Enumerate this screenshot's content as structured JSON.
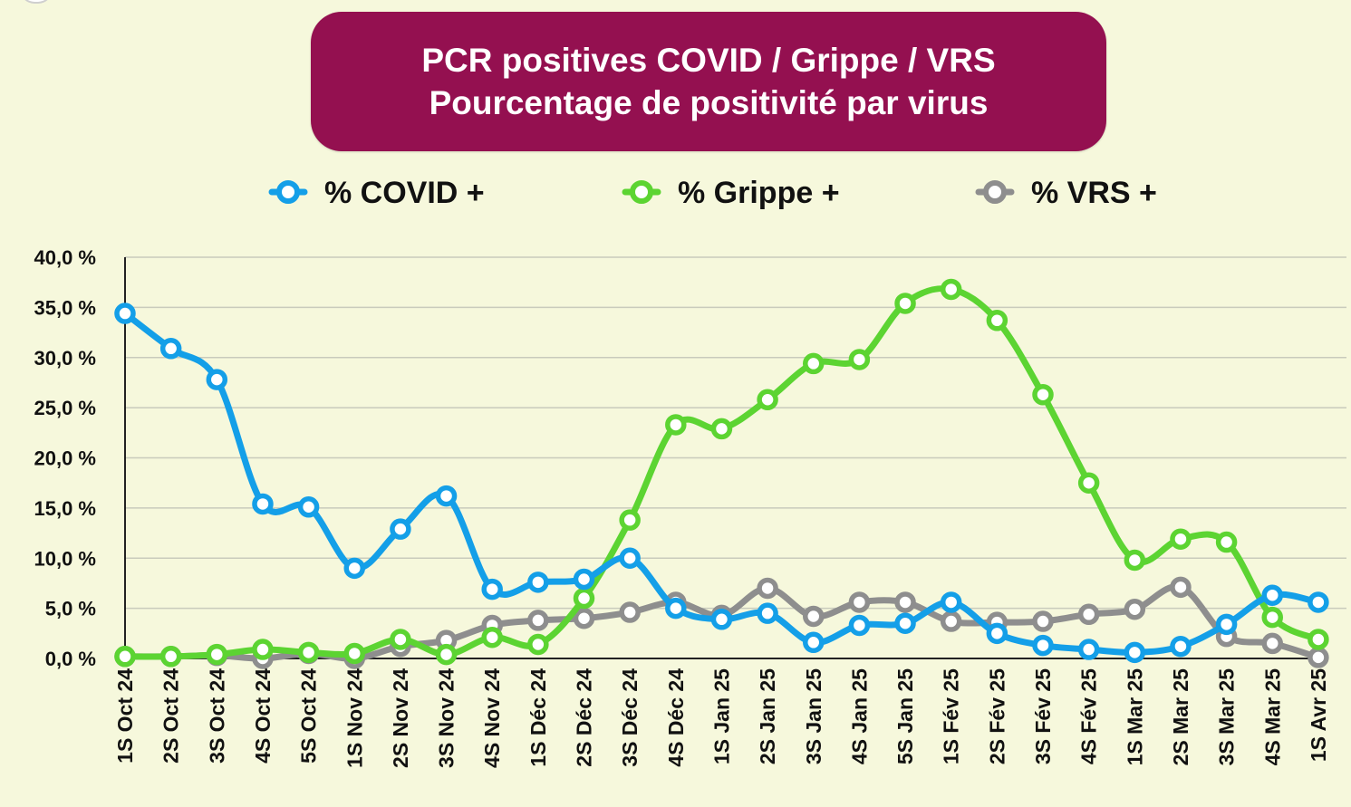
{
  "chart_data": {
    "type": "line",
    "title": "PCR positives COVID / Grippe / VRS",
    "subtitle": "Pourcentage de positivité par virus",
    "xlabel": "",
    "ylabel": "",
    "ylim": [
      0,
      40
    ],
    "y_ticks": [
      0,
      5,
      10,
      15,
      20,
      25,
      30,
      35,
      40
    ],
    "y_tick_labels": [
      "0,0 %",
      "5,0 %",
      "10,0 %",
      "15,0 %",
      "20,0 %",
      "25,0 %",
      "30,0 %",
      "35,0 %",
      "40,0 %"
    ],
    "grid": true,
    "legend_position": "top",
    "categories": [
      "1S Oct 24",
      "2S Oct 24",
      "3S Oct 24",
      "4S Oct 24",
      "5S Oct 24",
      "1S Nov 24",
      "2S Nov 24",
      "3S Nov 24",
      "4S Nov 24",
      "1S Déc 24",
      "2S Déc 24",
      "3S Déc 24",
      "4S Déc 24",
      "1S Jan 25",
      "2S Jan 25",
      "3S Jan 25",
      "4S Jan 25",
      "5S Jan 25",
      "1S Fév 25",
      "2S Fév 25",
      "3S Fév 25",
      "4S Fév 25",
      "1S Mar 25",
      "2S Mar 25",
      "3S Mar 25",
      "4S Mar 25",
      "1S Avr 25"
    ],
    "series": [
      {
        "name": "% VRS +",
        "color": "#8e8e8e",
        "values": [
          0.2,
          0.2,
          0.3,
          0.0,
          0.5,
          0.0,
          1.2,
          1.8,
          3.3,
          3.8,
          4.0,
          4.6,
          5.6,
          4.3,
          7.0,
          4.2,
          5.6,
          5.6,
          3.7,
          3.6,
          3.7,
          4.4,
          4.9,
          7.1,
          2.2,
          1.5,
          0.1
        ]
      },
      {
        "name": "% Grippe +",
        "color": "#5cd432",
        "values": [
          0.2,
          0.2,
          0.4,
          0.9,
          0.6,
          0.5,
          1.9,
          0.4,
          2.1,
          1.4,
          6.0,
          13.8,
          23.3,
          22.9,
          25.8,
          29.4,
          29.8,
          35.4,
          36.8,
          33.7,
          26.3,
          17.5,
          9.8,
          11.9,
          11.6,
          4.1,
          1.9
        ]
      },
      {
        "name": "% COVID +",
        "color": "#149fe8",
        "values": [
          34.4,
          30.9,
          27.8,
          15.4,
          15.1,
          9.0,
          12.9,
          16.2,
          6.9,
          7.6,
          7.9,
          10.0,
          5.0,
          3.9,
          4.5,
          1.6,
          3.3,
          3.5,
          5.6,
          2.5,
          1.3,
          0.9,
          0.6,
          1.2,
          3.4,
          6.3,
          5.6
        ]
      }
    ],
    "legend": [
      {
        "name": "% COVID +",
        "color": "#149fe8"
      },
      {
        "name": "% Grippe +",
        "color": "#5cd432"
      },
      {
        "name": "% VRS +",
        "color": "#8e8e8e"
      }
    ]
  },
  "colors": {
    "background": "#f6f8dc",
    "title_box": "#941050",
    "grid": "#c9cbbc"
  }
}
